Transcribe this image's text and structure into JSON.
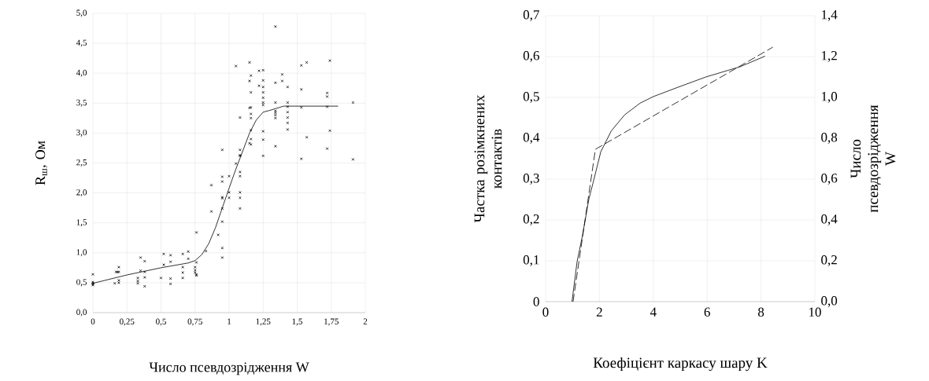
{
  "chart_data": [
    {
      "type": "scatter",
      "xlabel": "Число псевдозрідження W",
      "ylabel": "R$_{ш}$, Ом",
      "grid": true,
      "xlim": [
        0,
        2
      ],
      "ylim": [
        0,
        5
      ],
      "xticks": [
        0,
        {
          "value": 0.25,
          "label": "0,25"
        },
        {
          "value": 0.5,
          "label": "0,5"
        },
        {
          "value": 0.75,
          "label": "0,75"
        },
        1,
        {
          "value": 1.25,
          "label": "1,25"
        },
        {
          "value": 1.5,
          "label": "1,5"
        },
        {
          "value": 1.75,
          "label": "1,75"
        },
        2
      ],
      "yticks": [
        {
          "value": 0,
          "label": "0,0"
        },
        {
          "value": 0.5,
          "label": "0,5"
        },
        {
          "value": 1,
          "label": "1,0"
        },
        {
          "value": 1.5,
          "label": "1,5"
        },
        {
          "value": 2,
          "label": "2,0"
        },
        {
          "value": 2.5,
          "label": "2,5"
        },
        {
          "value": 3,
          "label": "3,0"
        },
        {
          "value": 3.5,
          "label": "3,5"
        },
        {
          "value": 4,
          "label": "4,0"
        },
        {
          "value": 4.5,
          "label": "4,5"
        },
        {
          "value": 5,
          "label": "5,0"
        }
      ],
      "series": [
        {
          "type": "scatter",
          "marker": "cross",
          "color": "#000000",
          "x": [
            0,
            0,
            0,
            0,
            0,
            0.17,
            0.18,
            0.19,
            0.19,
            0.16,
            0.19,
            0.19,
            0.35,
            0.38,
            0.35,
            0.38,
            0.33,
            0.33,
            0.33,
            0.38,
            0.38,
            0.52,
            0.52,
            0.5,
            0.57,
            0.57,
            0.57,
            0.57,
            0.66,
            0.66,
            0.66,
            0.66,
            0.7,
            0.7,
            0.75,
            0.75,
            0.75,
            0.76,
            0.76,
            0.76,
            0.76,
            0.83,
            0.87,
            0.87,
            0.92,
            0.95,
            0.95,
            0.95,
            0.95,
            0.95,
            0.95,
            0.95,
            0.95,
            1.0,
            1.0,
            1.0,
            1.05,
            1.08,
            1.08,
            1.08,
            1.08,
            1.08,
            1.08,
            1.25,
            1.53,
            1.91,
            0.95,
            1.08,
            1.08,
            1.05,
            1.15,
            1.15,
            1.16,
            1.16,
            1.15,
            1.16,
            1.08,
            1.16,
            1.16,
            1.16,
            1.16,
            1.16,
            1.15,
            1.22,
            1.22,
            1.25,
            1.25,
            1.25,
            1.25,
            1.25,
            1.25,
            1.25,
            1.25,
            1.25,
            1.34,
            1.34,
            1.34,
            1.34,
            1.34,
            1.34,
            1.34,
            1.34,
            1.39,
            1.39,
            1.43,
            1.43,
            1.43,
            1.43,
            1.43,
            1.43,
            1.43,
            1.53,
            1.57,
            1.53,
            1.53,
            1.57,
            1.72,
            1.72,
            1.72,
            1.72,
            1.74,
            1.74,
            1.91
          ],
          "values": [
            0.64,
            0.51,
            0.49,
            0.46,
            0.48,
            0.68,
            0.68,
            0.76,
            0.68,
            0.49,
            0.54,
            0.5,
            0.92,
            0.86,
            0.7,
            0.68,
            0.58,
            0.53,
            0.49,
            0.59,
            0.44,
            0.98,
            0.8,
            0.58,
            0.96,
            0.85,
            0.57,
            0.48,
            0.98,
            0.76,
            0.67,
            0.58,
            1.02,
            0.9,
            0.76,
            0.71,
            0.67,
            0.62,
            0.84,
            1.34,
            0.64,
            1.03,
            1.69,
            2.13,
            1.3,
            2.27,
            2.19,
            1.93,
            1.91,
            1.74,
            1.52,
            1.08,
            0.92,
            2.28,
            2.01,
            1.92,
            2.49,
            2.35,
            2.28,
            2.01,
            1.92,
            1.74,
            2.62,
            2.62,
            2.57,
            2.56,
            2.72,
            2.72,
            2.63,
            4.12,
            4.18,
            3.87,
            3.96,
            3.68,
            3.42,
            3.43,
            3.26,
            3.32,
            3.25,
            3.05,
            2.9,
            2.81,
            2.83,
            4.04,
            3.79,
            4.05,
            3.88,
            3.77,
            3.68,
            3.59,
            3.51,
            3.47,
            3.03,
            2.89,
            4.78,
            3.84,
            3.51,
            3.37,
            3.34,
            3.3,
            3.25,
            2.78,
            3.98,
            3.87,
            3.77,
            3.51,
            3.44,
            3.35,
            3.26,
            3.17,
            3.06,
            4.13,
            4.18,
            3.73,
            3.43,
            2.93,
            3.67,
            3.61,
            3.44,
            2.74,
            4.21,
            3.04,
            3.51
          ]
        },
        {
          "type": "line",
          "color": "#000000",
          "marker": "none",
          "x": [
            0,
            0.25,
            0.5,
            0.7,
            0.75,
            0.8,
            0.85,
            0.9,
            0.95,
            1.0,
            1.05,
            1.1,
            1.15,
            1.2,
            1.25,
            1.3,
            1.4,
            1.5,
            1.8
          ],
          "values": [
            0.49,
            0.63,
            0.75,
            0.83,
            0.87,
            0.97,
            1.15,
            1.42,
            1.75,
            2.08,
            2.4,
            2.7,
            3.0,
            3.22,
            3.35,
            3.38,
            3.45,
            3.45,
            3.45
          ]
        }
      ]
    },
    {
      "type": "line",
      "xlabel": "Коефіцієнт каркасу шару K",
      "ylabel": "Частка розімкнених контактів",
      "y2label": "Число псевдозрідження W",
      "grid": true,
      "xlim": [
        0,
        10
      ],
      "ylim": [
        0,
        0.7
      ],
      "y2lim": [
        0,
        1.4
      ],
      "xticks": [
        0,
        2,
        4,
        6,
        8,
        10
      ],
      "yticks": [
        0,
        {
          "value": 0.1,
          "label": "0,1"
        },
        {
          "value": 0.2,
          "label": "0,2"
        },
        {
          "value": 0.3,
          "label": "0,3"
        },
        {
          "value": 0.4,
          "label": "0,4"
        },
        {
          "value": 0.5,
          "label": "0,5"
        },
        {
          "value": 0.6,
          "label": "0,6"
        },
        {
          "value": 0.7,
          "label": "0,7"
        }
      ],
      "y2ticks": [
        {
          "value": 0,
          "label": "0,0"
        },
        {
          "value": 0.2,
          "label": "0,2"
        },
        {
          "value": 0.4,
          "label": "0,4"
        },
        {
          "value": 0.6,
          "label": "0,6"
        },
        {
          "value": 0.8,
          "label": "0,8"
        },
        {
          "value": 1.0,
          "label": "1,0"
        },
        {
          "value": 1.2,
          "label": "1,2"
        },
        {
          "value": 1.4,
          "label": "1,4"
        }
      ],
      "series": [
        {
          "color": "#000000",
          "line_style": "solid",
          "x": [
            0.98,
            1.17,
            1.37,
            1.61,
            1.76,
            2.05,
            2.44,
            2.93,
            3.51,
            4.0,
            4.88,
            5.95,
            7.22,
            8.15
          ],
          "values": [
            0,
            0.098,
            0.162,
            0.252,
            0.29,
            0.367,
            0.418,
            0.457,
            0.486,
            0.502,
            0.524,
            0.55,
            0.575,
            0.601
          ]
        },
        {
          "color": "#000000",
          "line_style": "dashed",
          "axis": "y2",
          "x": [
            1.02,
            1.85,
            8.44
          ],
          "values": [
            0,
            0.746,
            1.246
          ]
        }
      ]
    }
  ]
}
